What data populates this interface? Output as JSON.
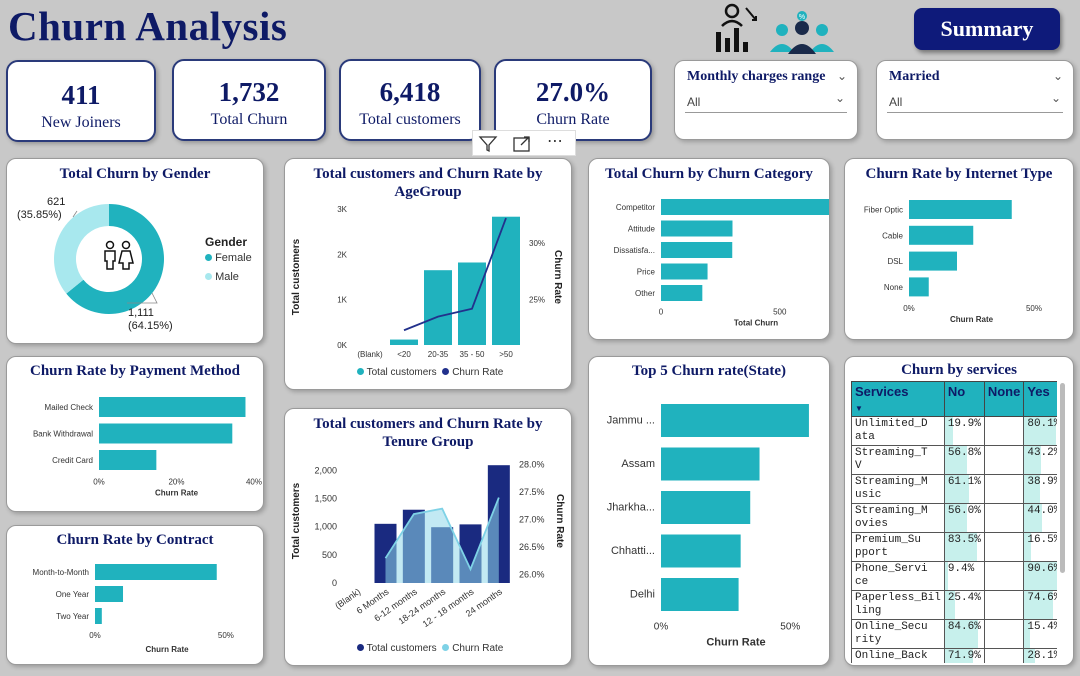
{
  "header": {
    "title": "Churn Analysis",
    "summary_button": "Summary"
  },
  "kpis": [
    {
      "value": "411",
      "label": "New Joiners"
    },
    {
      "value": "1,732",
      "label": "Total Churn"
    },
    {
      "value": "6,418",
      "label": "Total customers"
    },
    {
      "value": "27.0%",
      "label": "Churn Rate"
    }
  ],
  "slicers": [
    {
      "label": "Monthly charges range",
      "value": "All"
    },
    {
      "label": "Married",
      "value": "All"
    }
  ],
  "colors": {
    "teal": "#20b2be",
    "light_teal": "#a8e8ee",
    "navy": "#0e1a66",
    "line_navy": "#22318c"
  },
  "gender_chart": {
    "title": "Total Churn by Gender",
    "legend_title": "Gender",
    "chart_data": {
      "type": "pie",
      "categories": [
        "Female",
        "Male"
      ],
      "values": [
        1111,
        621
      ],
      "data_labels": [
        [
          "1,111",
          "(64.15%)"
        ],
        [
          "621",
          "(35.85%)"
        ]
      ]
    }
  },
  "age_chart": {
    "title": "Total customers and Churn Rate by AgeGroup",
    "legend": [
      "Total customers",
      "Churn Rate"
    ],
    "chart_data": {
      "type": "bar",
      "categories": [
        "(Blank)",
        "<20",
        "20-35",
        "35 - 50",
        ">50"
      ],
      "series": [
        {
          "name": "Total customers",
          "values": [
            0,
            120,
            1650,
            1820,
            2830
          ]
        },
        {
          "name": "Churn Rate",
          "values": [
            null,
            22.3,
            23.5,
            24.2,
            32.2
          ]
        }
      ],
      "ylabel": "Total customers",
      "y2label": "Churn Rate",
      "ylim": [
        0,
        3000
      ],
      "y2lim": [
        21.0,
        33.0
      ],
      "yticks": [
        "0K",
        "1K",
        "2K",
        "3K"
      ],
      "ytick_values": [
        0,
        1000,
        2000,
        3000
      ],
      "y2ticks": [
        "25%",
        "30%"
      ],
      "y2tick_values": [
        25,
        30
      ]
    }
  },
  "category_chart": {
    "title": "Total Churn by Churn Category",
    "chart_data": {
      "type": "bar",
      "categories": [
        "Competitor",
        "Attitude",
        "Dissatisfa...",
        "Price",
        "Other"
      ],
      "values": [
        761,
        301,
        300,
        196,
        174
      ],
      "xlabel": "Total Churn",
      "xlim": [
        0,
        800
      ],
      "xticks": [
        "0",
        "500"
      ],
      "xtick_values": [
        0,
        500
      ]
    }
  },
  "internet_chart": {
    "title": "Churn Rate by Internet Type",
    "chart_data": {
      "type": "bar",
      "categories": [
        "Fiber Optic",
        "Cable",
        "DSL",
        "None"
      ],
      "values": [
        41.1,
        25.7,
        19.2,
        7.9
      ],
      "xlabel": "Churn Rate",
      "xlim": [
        0,
        50
      ],
      "xticks": [
        "0%",
        "50%"
      ],
      "xtick_values": [
        0,
        50
      ]
    }
  },
  "payment_chart": {
    "title": "Churn Rate by Payment Method",
    "chart_data": {
      "type": "bar",
      "categories": [
        "Mailed Check",
        "Bank Withdrawal",
        "Credit Card"
      ],
      "values": [
        37.8,
        34.4,
        14.8
      ],
      "xlabel": "Churn Rate",
      "xlim": [
        0,
        40
      ],
      "xticks": [
        "0%",
        "20%",
        "40%"
      ],
      "xtick_values": [
        0,
        20,
        40
      ]
    }
  },
  "contract_chart": {
    "title": "Churn Rate by Contract",
    "chart_data": {
      "type": "bar",
      "categories": [
        "Month-to-Month",
        "One Year",
        "Two Year"
      ],
      "values": [
        46.5,
        10.7,
        2.6
      ],
      "xlabel": "Churn Rate",
      "xlim": [
        0,
        55
      ],
      "xticks": [
        "0%",
        "50%"
      ],
      "xtick_values": [
        0,
        50
      ]
    }
  },
  "tenure_chart": {
    "title": "Total customers and Churn Rate by Tenure Group",
    "legend": [
      "Total customers",
      "Churn Rate"
    ],
    "chart_data": {
      "type": "bar",
      "categories": [
        "(Blank)",
        "6 Months",
        "6-12 months",
        "18-24 months",
        "12 - 18 months",
        "24 months"
      ],
      "series": [
        {
          "name": "Total customers",
          "values": [
            0,
            1050,
            1300,
            990,
            1040,
            2090
          ]
        },
        {
          "name": "Churn Rate",
          "values": [
            null,
            26.3,
            27.1,
            27.2,
            26.1,
            27.4
          ]
        }
      ],
      "ylabel": "Total customers",
      "y2label": "Churn Rate",
      "ylim": [
        0,
        2200
      ],
      "y2lim": [
        25.85,
        28.1
      ],
      "yticks": [
        "0",
        "500",
        "1,000",
        "1,500",
        "2,000"
      ],
      "ytick_values": [
        0,
        500,
        1000,
        1500,
        2000
      ],
      "y2ticks": [
        "26.0%",
        "26.5%",
        "27.0%",
        "27.5%",
        "28.0%"
      ],
      "y2tick_values": [
        26.0,
        26.5,
        27.0,
        27.5,
        28.0
      ]
    }
  },
  "state_chart": {
    "title": "Top 5 Churn rate(State)",
    "chart_data": {
      "type": "bar",
      "categories": [
        "Jammu ...",
        "Assam",
        "Jharkha...",
        "Chhatti...",
        "Delhi"
      ],
      "values": [
        57.2,
        38.1,
        34.5,
        30.8,
        30.0
      ],
      "xlabel": "Churn Rate",
      "xlim": [
        0,
        58
      ],
      "xticks": [
        "0%",
        "50%"
      ],
      "xtick_values": [
        0,
        50
      ]
    }
  },
  "services_table": {
    "title": "Churn by services",
    "chart_data": {
      "type": "table",
      "columns": [
        "Services",
        "No",
        "None",
        "Yes"
      ],
      "rows": [
        {
          "service": [
            "Unlimited_D",
            "ata"
          ],
          "no": "19.9%",
          "none": "",
          "yes": "80.1%",
          "no_val": 19.9,
          "yes_val": 80.1
        },
        {
          "service": [
            "Streaming_T",
            "V"
          ],
          "no": "56.8%",
          "none": "",
          "yes": "43.2%",
          "no_val": 56.8,
          "yes_val": 43.2
        },
        {
          "service": [
            "Streaming_M",
            "usic"
          ],
          "no": "61.1%",
          "none": "",
          "yes": "38.9%",
          "no_val": 61.1,
          "yes_val": 38.9
        },
        {
          "service": [
            "Streaming_M",
            "ovies"
          ],
          "no": "56.0%",
          "none": "",
          "yes": "44.0%",
          "no_val": 56.0,
          "yes_val": 44.0
        },
        {
          "service": [
            "Premium_Su",
            "pport"
          ],
          "no": "83.5%",
          "none": "",
          "yes": "16.5%",
          "no_val": 83.5,
          "yes_val": 16.5
        },
        {
          "service": [
            "Phone_Servi",
            "ce"
          ],
          "no": "9.4%",
          "none": "",
          "yes": "90.6%",
          "no_val": 9.4,
          "yes_val": 90.6
        },
        {
          "service": [
            "Paperless_Bil",
            "ling"
          ],
          "no": "25.4%",
          "none": "",
          "yes": "74.6%",
          "no_val": 25.4,
          "yes_val": 74.6
        },
        {
          "service": [
            "Online_Secu",
            "rity"
          ],
          "no": "84.6%",
          "none": "",
          "yes": "15.4%",
          "no_val": 84.6,
          "yes_val": 15.4
        },
        {
          "service": [
            "Online_Back",
            ""
          ],
          "no": "71.9%",
          "none": "",
          "yes": "28.1%",
          "no_val": 71.9,
          "yes_val": 28.1
        }
      ]
    }
  }
}
